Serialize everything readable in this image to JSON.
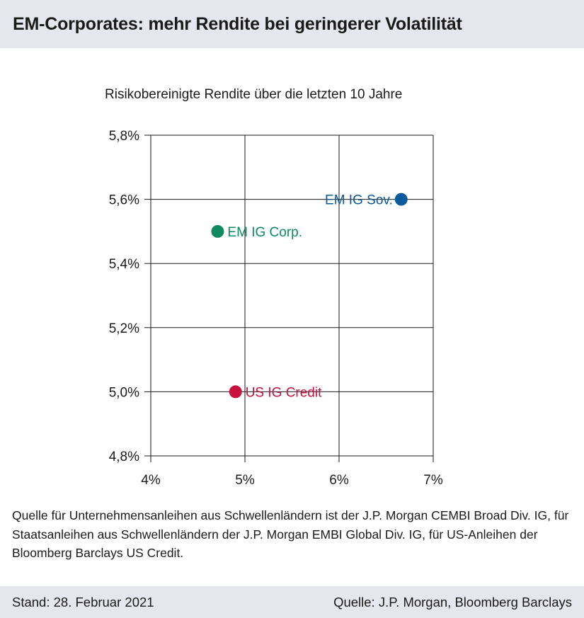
{
  "header": {
    "title": "EM-Corporates: mehr Rendite bei geringerer Volatilität"
  },
  "chart_data": {
    "type": "scatter",
    "title": "Risikobereinigte Rendite über die letzten 10 Jahre",
    "xlabel": "",
    "ylabel": "",
    "xlim": [
      4,
      7
    ],
    "ylim": [
      4.8,
      5.8
    ],
    "x_ticks": [
      4,
      5,
      6,
      7
    ],
    "x_tick_labels": [
      "4%",
      "5%",
      "6%",
      "7%"
    ],
    "y_ticks": [
      4.8,
      5.0,
      5.2,
      5.4,
      5.6,
      5.8
    ],
    "y_tick_labels": [
      "4,8%",
      "5,0%",
      "5,2%",
      "5,4%",
      "5,6%",
      "5,8%"
    ],
    "grid": true,
    "points": [
      {
        "label": "EM IG Sov.",
        "x": 6.66,
        "y": 5.6,
        "color": "#0a5a9c",
        "label_side": "left"
      },
      {
        "label": "EM IG Corp.",
        "x": 4.71,
        "y": 5.5,
        "color": "#0e8a5e",
        "label_side": "right"
      },
      {
        "label": "US IG Credit",
        "x": 4.9,
        "y": 5.0,
        "color": "#c8103e",
        "label_side": "right"
      }
    ]
  },
  "note": "Quelle für Unternehmensanleihen aus Schwellenländern ist der J.P. Morgan CEMBI Broad Div. IG, für Staatsanleihen aus Schwellenländern der J.P. Morgan EMBI Global Div. IG, für US-Anleihen der Bloomberg Barclays US Credit.",
  "footer": {
    "date": "Stand: 28. Februar 2021",
    "source": "Quelle: J.P. Morgan, Bloomberg Barclays"
  }
}
